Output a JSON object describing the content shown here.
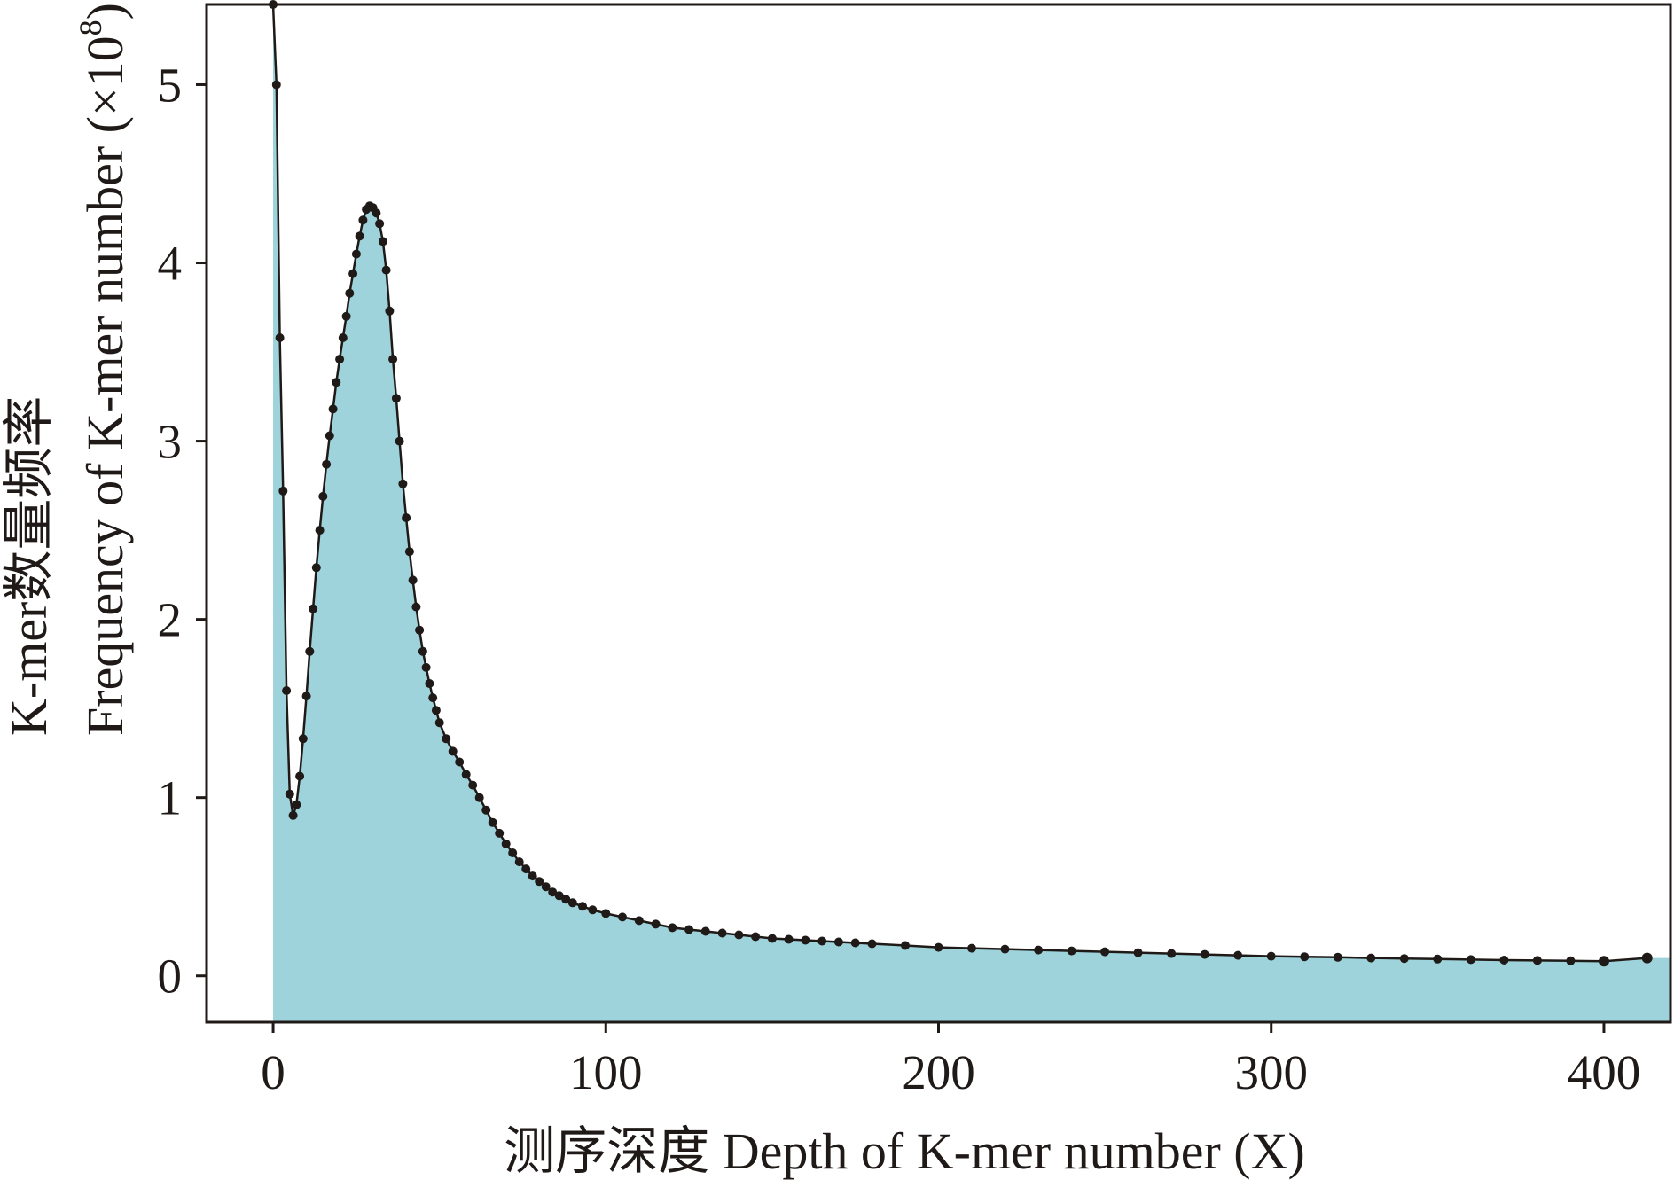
{
  "chart_data": {
    "type": "area",
    "xlabel": "测序深度 Depth of K-mer number (X)",
    "ylabel_line1": "K-mer数量频率",
    "ylabel_line2_base": "Frequency of K-mer number (×10",
    "ylabel_line2_sup": "8",
    "ylabel_line2_end": ")",
    "xlim": [
      -20,
      420
    ],
    "ylim": [
      -0.26,
      5.45
    ],
    "xticks": [
      {
        "value": 0,
        "label": "0"
      },
      {
        "value": 100,
        "label": "100"
      },
      {
        "value": 200,
        "label": "200"
      },
      {
        "value": 300,
        "label": "300"
      },
      {
        "value": 400,
        "label": "400"
      }
    ],
    "yticks": [
      {
        "value": 0,
        "label": "0"
      },
      {
        "value": 1,
        "label": "1"
      },
      {
        "value": 2,
        "label": "2"
      },
      {
        "value": 3,
        "label": "3"
      },
      {
        "value": 4,
        "label": "4"
      },
      {
        "value": 5,
        "label": "5"
      }
    ],
    "fill_color": "#9fd3db",
    "line_color": "#1f1a17",
    "series": [
      {
        "x": [
          0,
          1,
          2,
          3,
          4,
          5,
          6,
          7,
          8,
          9,
          10,
          11,
          12,
          13,
          14,
          15,
          16,
          17,
          18,
          19,
          20,
          21,
          22,
          23,
          24,
          25,
          26,
          27,
          28,
          29,
          30,
          31,
          32,
          33,
          34,
          35,
          36,
          37,
          38,
          39,
          40,
          41,
          42,
          43,
          44,
          45,
          46,
          47,
          48,
          49,
          50,
          52,
          54,
          56,
          58,
          60,
          62,
          64,
          66,
          68,
          70,
          72,
          74,
          76,
          78,
          80,
          82,
          84,
          86,
          88,
          90,
          93,
          96,
          100,
          105,
          110,
          115,
          120,
          125,
          130,
          135,
          140,
          145,
          150,
          155,
          160,
          165,
          170,
          175,
          180,
          190,
          200,
          210,
          220,
          230,
          240,
          250,
          260,
          270,
          280,
          290,
          300,
          310,
          320,
          330,
          340,
          350,
          360,
          370,
          380,
          390,
          400,
          413
        ],
        "y": [
          5.45,
          5.0,
          3.58,
          2.72,
          1.6,
          1.02,
          0.9,
          0.96,
          1.12,
          1.33,
          1.57,
          1.82,
          2.06,
          2.29,
          2.5,
          2.69,
          2.87,
          3.03,
          3.18,
          3.33,
          3.46,
          3.58,
          3.7,
          3.83,
          3.94,
          4.05,
          4.15,
          4.24,
          4.3,
          4.32,
          4.31,
          4.28,
          4.22,
          4.12,
          3.96,
          3.73,
          3.46,
          3.24,
          3.0,
          2.76,
          2.57,
          2.38,
          2.22,
          2.07,
          1.94,
          1.82,
          1.73,
          1.64,
          1.56,
          1.49,
          1.42,
          1.33,
          1.26,
          1.2,
          1.13,
          1.07,
          1.0,
          0.93,
          0.86,
          0.8,
          0.74,
          0.69,
          0.64,
          0.6,
          0.56,
          0.53,
          0.5,
          0.47,
          0.45,
          0.43,
          0.41,
          0.39,
          0.37,
          0.35,
          0.33,
          0.31,
          0.29,
          0.27,
          0.26,
          0.25,
          0.24,
          0.23,
          0.22,
          0.21,
          0.205,
          0.2,
          0.195,
          0.19,
          0.185,
          0.18,
          0.17,
          0.16,
          0.155,
          0.15,
          0.145,
          0.14,
          0.135,
          0.13,
          0.125,
          0.12,
          0.115,
          0.11,
          0.107,
          0.104,
          0.1,
          0.097,
          0.094,
          0.091,
          0.088,
          0.086,
          0.084,
          0.082,
          0.1
        ]
      }
    ]
  }
}
